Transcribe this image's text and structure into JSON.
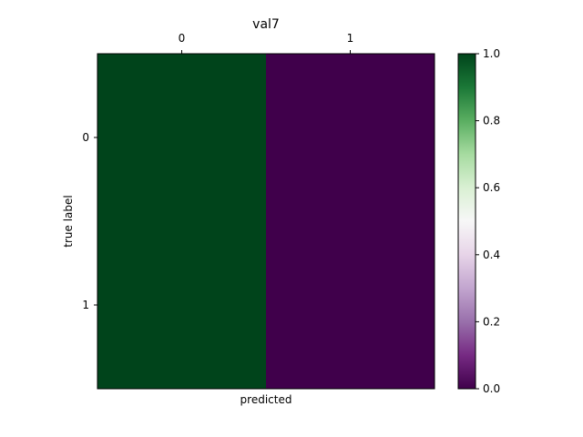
{
  "chart_data": {
    "type": "heatmap",
    "title": "val7",
    "xlabel": "predicted",
    "ylabel": "true label",
    "x_categories": [
      "0",
      "1"
    ],
    "y_categories": [
      "0",
      "1"
    ],
    "values": [
      [
        1.0,
        0.0
      ],
      [
        1.0,
        0.0
      ]
    ],
    "colormap": "PRGn",
    "colormap_stops": [
      "#40004b",
      "#762a83",
      "#9970ab",
      "#c2a5cf",
      "#e7d4e8",
      "#f7f7f7",
      "#d9f0d3",
      "#a6dba0",
      "#5aae61",
      "#1b7837",
      "#00441b"
    ],
    "value_range": [
      0.0,
      1.0
    ],
    "colorbar_ticks": [
      "0.0",
      "0.2",
      "0.4",
      "0.6",
      "0.8",
      "1.0"
    ],
    "grid": false
  }
}
